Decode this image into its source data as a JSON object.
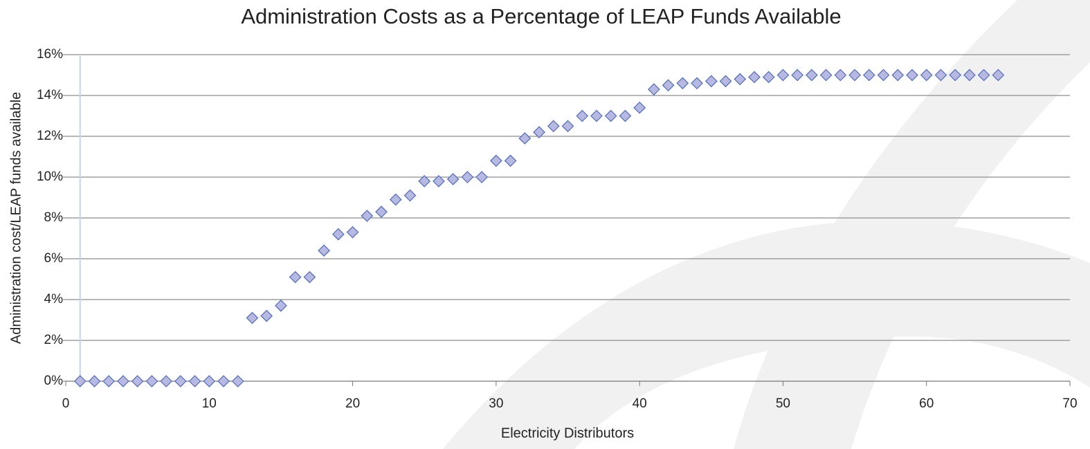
{
  "chart_data": {
    "type": "scatter",
    "title": "Administration Costs as a Percentage of LEAP Funds Available",
    "xlabel": "Electricity Distributors",
    "ylabel": "Administration cost/LEAP funds available",
    "x": [
      1,
      2,
      3,
      4,
      5,
      6,
      7,
      8,
      9,
      10,
      11,
      12,
      13,
      14,
      15,
      16,
      17,
      18,
      19,
      20,
      21,
      22,
      23,
      24,
      25,
      26,
      27,
      28,
      29,
      30,
      31,
      32,
      33,
      34,
      35,
      36,
      37,
      38,
      39,
      40,
      41,
      42,
      43,
      44,
      45,
      46,
      47,
      48,
      49,
      50,
      51,
      52,
      53,
      54,
      55,
      56,
      57,
      58,
      59,
      60,
      61,
      62,
      63,
      64,
      65
    ],
    "values": [
      0,
      0,
      0,
      0,
      0,
      0,
      0,
      0,
      0,
      0,
      0,
      0,
      3.1,
      3.2,
      3.7,
      5.1,
      5.1,
      6.4,
      7.2,
      7.3,
      8.1,
      8.3,
      8.9,
      9.1,
      9.8,
      9.8,
      9.9,
      10.0,
      10.0,
      10.8,
      10.8,
      11.9,
      12.2,
      12.5,
      12.5,
      13.0,
      13.0,
      13.0,
      13.0,
      13.4,
      14.3,
      14.5,
      14.6,
      14.6,
      14.7,
      14.7,
      14.8,
      14.9,
      14.9,
      15.0,
      15.0,
      15.0,
      15.0,
      15.0,
      15.0,
      15.0,
      15.0,
      15.0,
      15.0,
      15.0,
      15.0,
      15.0,
      15.0,
      15.0,
      15.0
    ],
    "color": "#b8b8e0",
    "xlim": [
      0,
      70
    ],
    "xticks": [
      0,
      10,
      20,
      30,
      40,
      50,
      60,
      70
    ],
    "ylim": [
      0,
      16
    ],
    "yticks": [
      {
        "value": 0,
        "label": "0%"
      },
      {
        "value": 2,
        "label": "2%"
      },
      {
        "value": 4,
        "label": "4%"
      },
      {
        "value": 6,
        "label": "6%"
      },
      {
        "value": 8,
        "label": "8%"
      },
      {
        "value": 10,
        "label": "10%"
      },
      {
        "value": 12,
        "label": "12%"
      },
      {
        "value": 14,
        "label": "14%"
      },
      {
        "value": 16,
        "label": "16%"
      }
    ],
    "grid": true
  }
}
